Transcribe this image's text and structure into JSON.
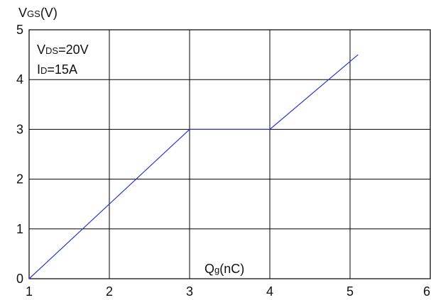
{
  "chart_data": {
    "type": "line",
    "title": "",
    "ylabel": {
      "main": "V",
      "sub": "GS",
      "suffix": "(V)"
    },
    "xlabel": {
      "main": "Q",
      "sub": "g",
      "suffix": "(nC)"
    },
    "xlim": [
      1,
      6
    ],
    "ylim": [
      0,
      5
    ],
    "x_ticks": [
      "1",
      "2",
      "3",
      "4",
      "5",
      "6"
    ],
    "y_ticks": [
      "0",
      "1",
      "2",
      "3",
      "4",
      "5"
    ],
    "grid": true,
    "annotations": [
      {
        "main": "V",
        "sub": "DS",
        "suffix": "=20V"
      },
      {
        "main": "I",
        "sub": "D",
        "suffix": "=15A"
      }
    ],
    "series": [
      {
        "color": "#2b35c9",
        "x": [
          1.0,
          3.0,
          4.0,
          5.1
        ],
        "y": [
          0.0,
          3.0,
          3.0,
          4.5
        ]
      }
    ]
  }
}
